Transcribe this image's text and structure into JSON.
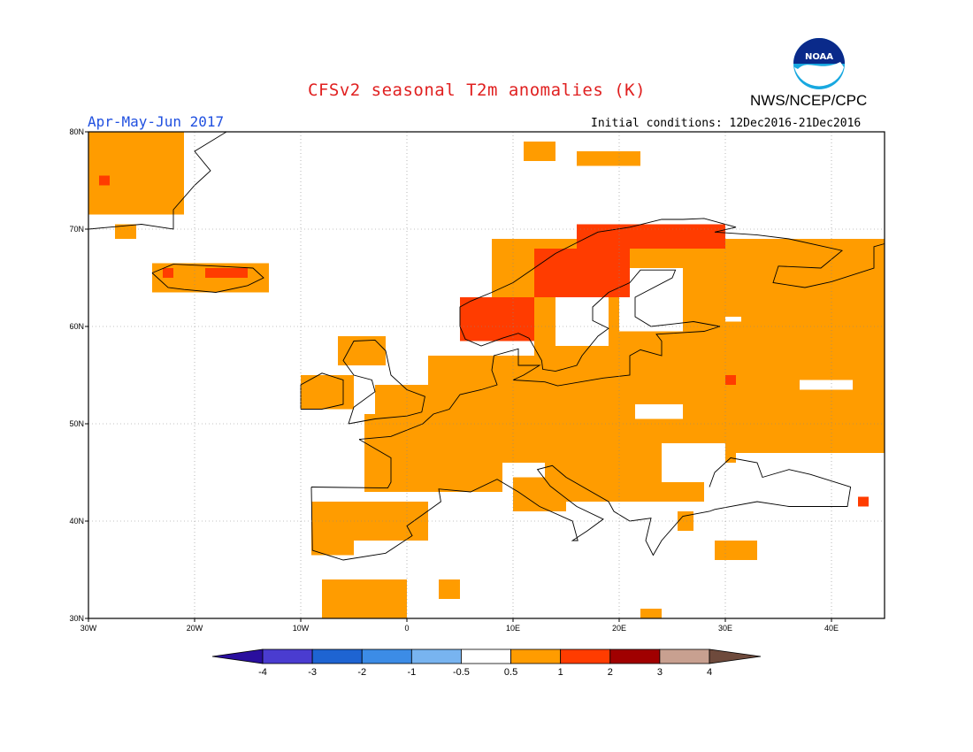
{
  "header": {
    "title": "CFSv2 seasonal T2m anomalies (K)",
    "period": "Apr-May-Jun 2017",
    "initial_conditions": "Initial conditions: 12Dec2016-21Dec2016",
    "organization": "NWS/NCEP/CPC",
    "logo_text": "NOAA"
  },
  "map": {
    "lon_range": [
      -30,
      45
    ],
    "lat_range": [
      30,
      80
    ],
    "lon_ticks": [
      "30W",
      "20W",
      "10W",
      "0",
      "10E",
      "20E",
      "30E",
      "40E"
    ],
    "lat_ticks": [
      "30N",
      "40N",
      "50N",
      "60N",
      "70N",
      "80N"
    ],
    "gridlines": true,
    "anomaly_regions": [
      {
        "name": "Greenland",
        "level": "0.5-1",
        "lon": [
          -30,
          -21
        ],
        "lat": [
          70,
          80
        ]
      },
      {
        "name": "Iceland",
        "level": "1-2",
        "lon": [
          -24,
          -13
        ],
        "lat": [
          63.5,
          66.5
        ]
      },
      {
        "name": "Scandinavia coast",
        "level": "1-2",
        "lon": [
          5,
          30
        ],
        "lat": [
          58,
          71
        ]
      },
      {
        "name": "Central & Eastern Europe",
        "level": "0.5-1",
        "lon": [
          -5,
          45
        ],
        "lat": [
          42,
          70
        ]
      },
      {
        "name": "Iberia",
        "level": "0.5-1",
        "lon": [
          -9,
          3
        ],
        "lat": [
          36,
          43
        ]
      },
      {
        "name": "North Africa",
        "level": "0.5-1",
        "lon": [
          -8,
          0
        ],
        "lat": [
          30,
          34
        ]
      },
      {
        "name": "Svalbard",
        "level": "0.5-1",
        "lon": [
          10,
          25
        ],
        "lat": [
          77,
          80
        ]
      }
    ]
  },
  "colorbar": {
    "labels": [
      "-4",
      "-3",
      "-2",
      "-1",
      "-0.5",
      "0.5",
      "1",
      "2",
      "3",
      "4"
    ],
    "colors": [
      "#2a0f9e",
      "#4a3cd0",
      "#1e64d2",
      "#3c8ce6",
      "#78b4f0",
      "#ffffff",
      "#ff9c00",
      "#ff3c00",
      "#a00000",
      "#c8a090",
      "#6e4a3c"
    ]
  }
}
